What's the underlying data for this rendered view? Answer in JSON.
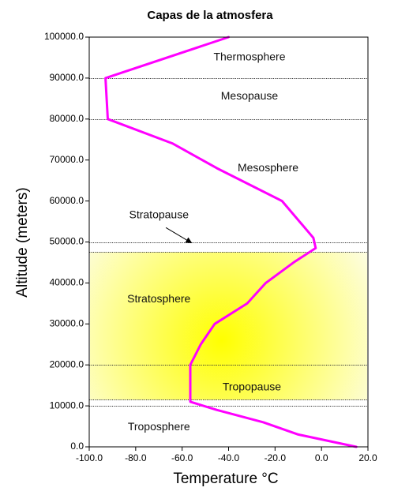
{
  "chart_data": {
    "type": "line",
    "title": "Capas de la atmosfera",
    "xlabel": "Temperature °C",
    "ylabel": "Altitude (meters)",
    "xlim": [
      -100,
      20
    ],
    "ylim": [
      0,
      100000
    ],
    "x_ticks": [
      "-100.0",
      "-80.0",
      "-60.0",
      "-40.0",
      "-20.0",
      "0.0",
      "20.0"
    ],
    "y_ticks": [
      "0.0",
      "10000.0",
      "20000.0",
      "30000.0",
      "40000.0",
      "50000.0",
      "60000.0",
      "70000.0",
      "80000.0",
      "90000.0",
      "100000.0"
    ],
    "series": [
      {
        "color": "#ff00ff",
        "points": [
          {
            "x": 15,
            "y": 0
          },
          {
            "x": -10,
            "y": 3000
          },
          {
            "x": -25,
            "y": 6000
          },
          {
            "x": -45,
            "y": 9000
          },
          {
            "x": -56.5,
            "y": 11000
          },
          {
            "x": -56.5,
            "y": 20000
          },
          {
            "x": -52,
            "y": 25000
          },
          {
            "x": -46,
            "y": 30000
          },
          {
            "x": -32,
            "y": 35000
          },
          {
            "x": -24,
            "y": 40000
          },
          {
            "x": -12,
            "y": 45000
          },
          {
            "x": -2.5,
            "y": 48500
          },
          {
            "x": -3.5,
            "y": 51000
          },
          {
            "x": -17,
            "y": 60000
          },
          {
            "x": -45,
            "y": 68000
          },
          {
            "x": -64,
            "y": 74000
          },
          {
            "x": -92,
            "y": 80000
          },
          {
            "x": -93,
            "y": 90000
          },
          {
            "x": -40,
            "y": 100000
          }
        ]
      }
    ],
    "boundaries": [
      {
        "y": 10000,
        "style": "dashed"
      },
      {
        "y": 11500,
        "style": "dashed"
      },
      {
        "y": 20000,
        "style": "dashed"
      },
      {
        "y": 47500,
        "style": "dashed"
      },
      {
        "y": 50000,
        "style": "dashed"
      },
      {
        "y": 80000,
        "style": "dashed"
      },
      {
        "y": 90000,
        "style": "dashed"
      }
    ],
    "shaded_region": {
      "y_from": 11500,
      "y_to": 47500,
      "center_x": -43,
      "center_y": 26000,
      "colors": [
        "#ffff00",
        "#fdfde2"
      ]
    },
    "layer_labels": [
      {
        "text": "Thermosphere",
        "x": -31,
        "y": 95000
      },
      {
        "text": "Mesopause",
        "x": -31,
        "y": 85500
      },
      {
        "text": "Mesosphere",
        "x": -23,
        "y": 68000
      },
      {
        "text": "Stratopause",
        "x": -70,
        "y": 56500
      },
      {
        "text": "Stratosphere",
        "x": -70,
        "y": 36000
      },
      {
        "text": "Tropopause",
        "x": -30,
        "y": 14500
      },
      {
        "text": "Troposphere",
        "x": -70,
        "y": 4800
      }
    ],
    "annotation_arrow": {
      "from": {
        "x": -67,
        "y": 53500
      },
      "to": {
        "x": -56,
        "y": 49800
      }
    },
    "grid": false,
    "legend": "none"
  }
}
